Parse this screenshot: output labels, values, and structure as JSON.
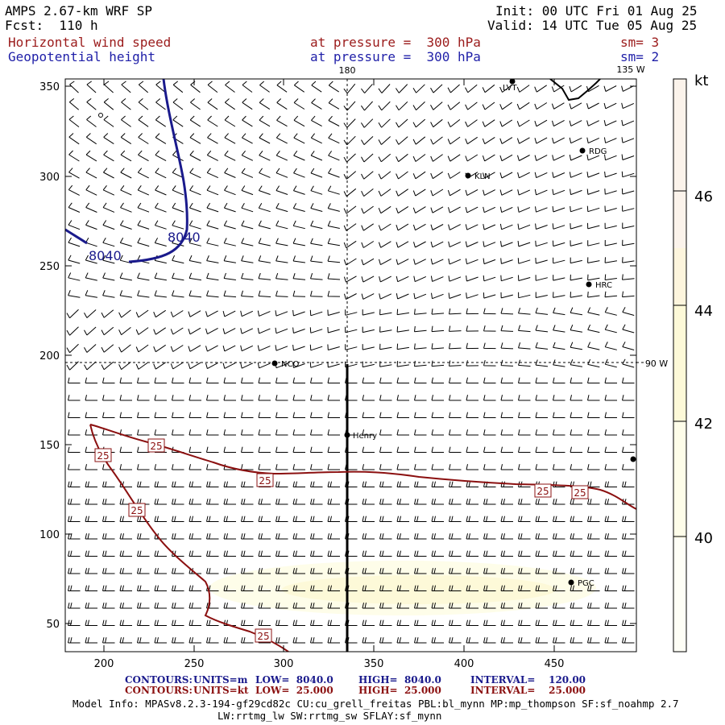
{
  "header": {
    "model": "AMPS 2.67-km WRF SP",
    "fcst": "Fcst:  110 h",
    "init": "Init: 00 UTC Fri 01 Aug 25",
    "valid": "Valid: 14 UTC Tue 05 Aug 25",
    "field1": "Horizontal wind speed",
    "field1_level": "at pressure =  300 hPa",
    "field1_sm": "sm= 3",
    "field2": "Geopotential height",
    "field2_level": "at pressure =  300 hPa",
    "field2_sm": "sm= 2"
  },
  "map_labels": {
    "lon_180": "180",
    "lon_135w": "135 W",
    "lon_90w": "90 W",
    "stations": [
      "LVT",
      "RDG",
      "KLN",
      "HRC",
      "NCO",
      "Henry",
      "PGC"
    ],
    "contour_height": "8040",
    "contour_speed": "25"
  },
  "axes": {
    "x_ticks": [
      "200",
      "250",
      "300",
      "350",
      "400",
      "450"
    ],
    "y_ticks": [
      "350",
      "300",
      "250",
      "200",
      "150",
      "100",
      "50"
    ]
  },
  "colorbar": {
    "unit": "kt",
    "labels": [
      "46",
      "44",
      "42",
      "40"
    ],
    "colors": [
      "#fbf3eb",
      "#fdf5dd",
      "#fdf9d8",
      "#fefde9",
      "#fefef6"
    ]
  },
  "footer": {
    "line1": {
      "label": "CONTOURS:",
      "units": "UNITS=m",
      "low": "LOW=  8040.0",
      "high": "HIGH=  8040.0",
      "interval": "INTERVAL=    120.00"
    },
    "line2": {
      "label": "CONTOURS:",
      "units": "UNITS=kt",
      "low": "LOW=  25.000",
      "high": "HIGH=  25.000",
      "interval": "INTERVAL=    25.000"
    },
    "model_info": "Model Info: MPASv8.2.3-194-gf29cd82c CU:cu_grell_freitas PBL:bl_mynn MP:mp_thompson SF:sf_noahmp 2.7",
    "model_info2": "LW:rrtmg_lw SW:rrtmg_sw SFLAY:sf_mynn"
  }
}
